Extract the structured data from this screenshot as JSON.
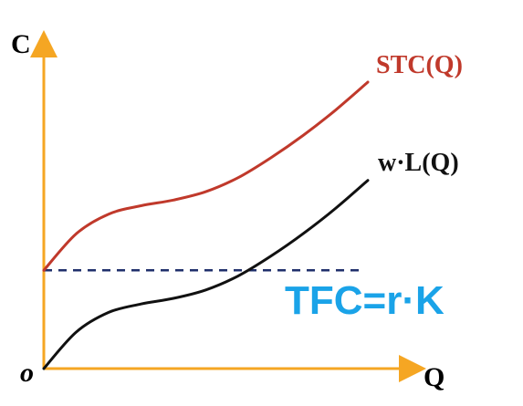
{
  "chart_data": {
    "type": "line",
    "axis_labels": {
      "y": "C",
      "x": "Q",
      "origin": "o"
    },
    "grid": false,
    "series": [
      {
        "name": "STC(Q)",
        "color": "#c0392b",
        "x": [
          0,
          1,
          2,
          3,
          4,
          5,
          6,
          7,
          8,
          9,
          10
        ],
        "values": [
          3.5,
          4.8,
          5.5,
          5.8,
          6.0,
          6.3,
          6.8,
          7.5,
          8.3,
          9.2,
          10.2
        ]
      },
      {
        "name": "w·L(Q)",
        "color": "#111111",
        "x": [
          0,
          1,
          2,
          3,
          4,
          5,
          6,
          7,
          8,
          9,
          10
        ],
        "values": [
          0,
          1.3,
          2.0,
          2.3,
          2.5,
          2.8,
          3.3,
          4.0,
          4.8,
          5.7,
          6.7
        ]
      }
    ],
    "reference_line": {
      "label": "TFC=r·K",
      "label_color": "#1aa3e8",
      "value": 3.5,
      "style": "dashed",
      "color": "#1f2f6b"
    },
    "axis_color": "#f5a623",
    "xlim": [
      0,
      10.5
    ],
    "ylim": [
      0,
      11
    ]
  }
}
